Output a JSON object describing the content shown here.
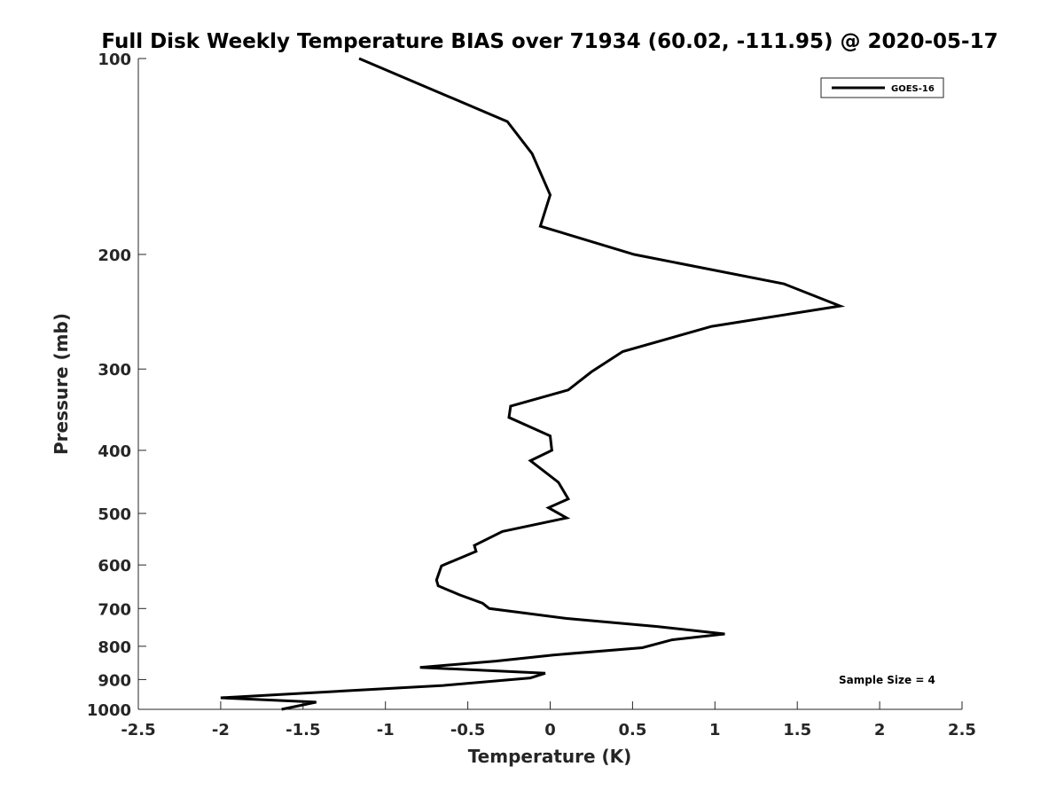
{
  "chart_data": {
    "type": "line",
    "title": "Full Disk Weekly Temperature BIAS over 71934 (60.02, -111.95) @ 2020-05-17",
    "xlabel": "Temperature (K)",
    "ylabel": "Pressure (mb)",
    "xlim": [
      -2.5,
      2.5
    ],
    "ylim": [
      100,
      1000
    ],
    "y_scale": "log",
    "y_reversed": true,
    "x_ticks": [
      "-2.5",
      "-2",
      "-1.5",
      "-1",
      "-0.5",
      "0",
      "0.5",
      "1",
      "1.5",
      "2",
      "2.5"
    ],
    "x_tick_values": [
      -2.5,
      -2,
      -1.5,
      -1,
      -0.5,
      0,
      0.5,
      1,
      1.5,
      2,
      2.5
    ],
    "y_ticks": [
      "100",
      "200",
      "300",
      "400",
      "500",
      "600",
      "700",
      "800",
      "900",
      "1000"
    ],
    "y_tick_values": [
      100,
      200,
      300,
      400,
      500,
      600,
      700,
      800,
      900,
      1000
    ],
    "grid": false,
    "legend_position": "top-right",
    "annotation": "Sample Size = 4",
    "series": [
      {
        "name": "GOES-16",
        "color": "#000000",
        "x": [
          -1.16,
          -0.26,
          -0.11,
          0.0,
          -0.06,
          0.51,
          1.42,
          1.76,
          0.98,
          0.44,
          0.25,
          0.11,
          -0.24,
          -0.25,
          0.0,
          0.01,
          -0.12,
          0.05,
          0.11,
          -0.01,
          0.1,
          -0.29,
          -0.46,
          -0.45,
          -0.66,
          -0.69,
          -0.68,
          -0.55,
          -0.41,
          -0.37,
          0.1,
          0.65,
          1.06,
          0.74,
          0.56,
          0.02,
          -0.33,
          -0.79,
          -0.03,
          -0.12,
          -0.65,
          -2.0,
          -1.42,
          -1.63
        ],
        "y": [
          100,
          125,
          140,
          162,
          181,
          200,
          222,
          240,
          258,
          282,
          303,
          323,
          342,
          356,
          380,
          400,
          415,
          448,
          475,
          490,
          508,
          533,
          560,
          572,
          602,
          633,
          646,
          667,
          687,
          700,
          725,
          746,
          766,
          782,
          804,
          825,
          843,
          862,
          880,
          895,
          919,
          960,
          975,
          1000
        ]
      }
    ]
  }
}
